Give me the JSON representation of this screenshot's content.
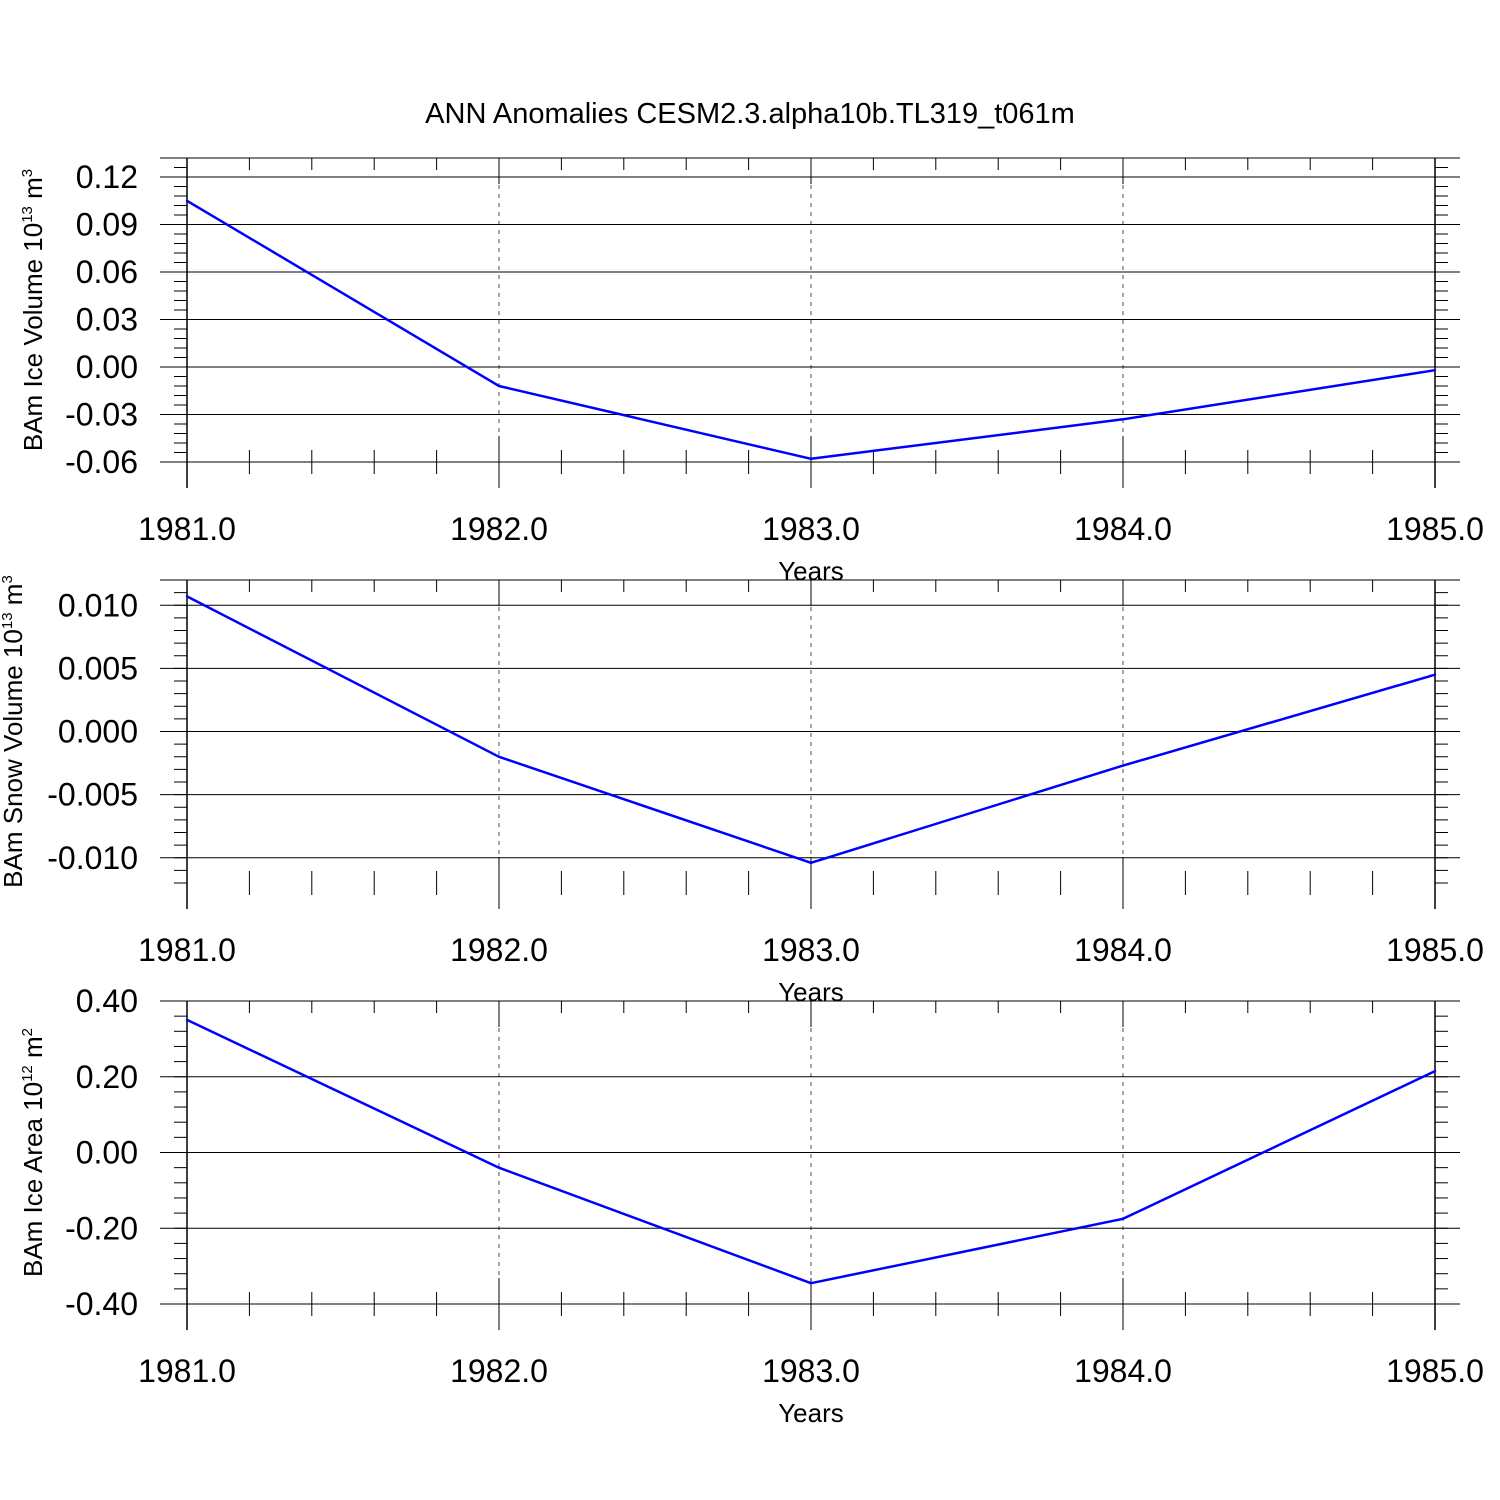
{
  "title": "ANN Anomalies CESM2.3.alpha10b.TL319_t061m",
  "colors": {
    "series": "#0000ff",
    "axes": "#000000",
    "grid": "#000000"
  },
  "chart_data": [
    {
      "type": "line",
      "title": "ANN Anomalies CESM2.3.alpha10b.TL319_t061m",
      "xlabel": "Years",
      "ylabel": {
        "text": "BAm Ice Volume 10",
        "exponent": "13",
        "unit": " m",
        "unit_exponent": "3"
      },
      "xlim": [
        1981,
        1985
      ],
      "ylim": [
        -0.06,
        0.132
      ],
      "x_ticks": [
        1981,
        1982,
        1983,
        1984,
        1985
      ],
      "x_tick_labels": [
        "1981.0",
        "1982.0",
        "1983.0",
        "1984.0",
        "1985.0"
      ],
      "y_ticks": [
        0.12,
        0.09,
        0.06,
        0.03,
        0.0,
        -0.03,
        -0.06
      ],
      "y_tick_labels": [
        "0.12",
        "0.09",
        "0.06",
        "0.03",
        "0.00",
        "-0.03",
        "-0.06"
      ],
      "grid": "vertical dashed",
      "x": [
        1981,
        1982,
        1983,
        1984,
        1985
      ],
      "y": [
        0.105,
        -0.012,
        -0.058,
        -0.033,
        -0.002
      ]
    },
    {
      "type": "line",
      "xlabel": "Years",
      "ylabel": {
        "text": "BAm Snow Volume 10",
        "exponent": "13",
        "unit": " m",
        "unit_exponent": "3"
      },
      "xlim": [
        1981,
        1985
      ],
      "ylim": [
        -0.012,
        0.012
      ],
      "x_ticks": [
        1981,
        1982,
        1983,
        1984,
        1985
      ],
      "x_tick_labels": [
        "1981.0",
        "1982.0",
        "1983.0",
        "1984.0",
        "1985.0"
      ],
      "y_ticks": [
        0.01,
        0.005,
        0.0,
        -0.005,
        -0.01
      ],
      "y_tick_labels": [
        "0.010",
        "0.005",
        "0.000",
        "-0.005",
        "-0.010"
      ],
      "grid": "vertical dashed",
      "x": [
        1981,
        1982,
        1983,
        1984,
        1985
      ],
      "y": [
        0.0107,
        -0.002,
        -0.0104,
        -0.0027,
        0.0045
      ]
    },
    {
      "type": "line",
      "xlabel": "Years",
      "ylabel": {
        "text": "BAm Ice Area 10",
        "exponent": "12",
        "unit": " m",
        "unit_exponent": "2"
      },
      "xlim": [
        1981,
        1985
      ],
      "ylim": [
        -0.4,
        0.4
      ],
      "x_ticks": [
        1981,
        1982,
        1983,
        1984,
        1985
      ],
      "x_tick_labels": [
        "1981.0",
        "1982.0",
        "1983.0",
        "1984.0",
        "1985.0"
      ],
      "y_ticks": [
        0.4,
        0.2,
        0.0,
        -0.2,
        -0.4
      ],
      "y_tick_labels": [
        "0.40",
        "0.20",
        "0.00",
        "-0.20",
        "-0.40"
      ],
      "grid": "vertical dashed",
      "x": [
        1981,
        1982,
        1983,
        1984,
        1985
      ],
      "y": [
        0.35,
        -0.04,
        -0.345,
        -0.175,
        0.215
      ]
    }
  ]
}
